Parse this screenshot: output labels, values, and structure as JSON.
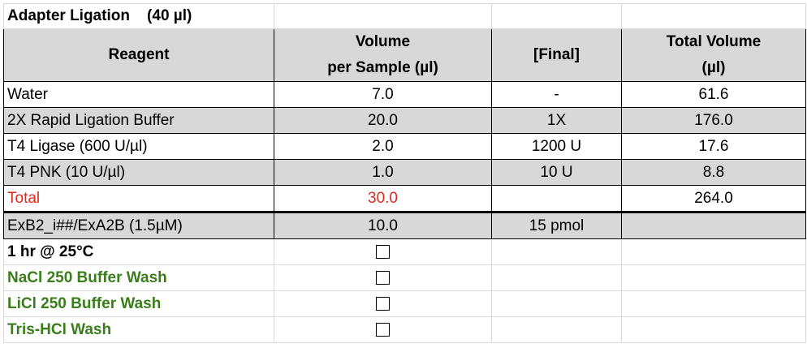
{
  "title": "Adapter Ligation    (40 µl)",
  "header": {
    "reagent": "Reagent",
    "volume_line1": "Volume",
    "volume_line2": "per Sample (µl)",
    "final": "[Final]",
    "total_line1": "Total Volume",
    "total_line2": "(µl)"
  },
  "rows": [
    {
      "reagent": "Water",
      "volume": "7.0",
      "final": "-",
      "total": "61.6"
    },
    {
      "reagent": "2X Rapid Ligation Buffer",
      "volume": "20.0",
      "final": "1X",
      "total": "176.0"
    },
    {
      "reagent": "T4 Ligase (600 U/µl)",
      "volume": "2.0",
      "final": "1200 U",
      "total": "17.6"
    },
    {
      "reagent": "T4 PNK (10 U/µl)",
      "volume": "1.0",
      "final": "10 U",
      "total": "8.8"
    }
  ],
  "total_row": {
    "reagent": "Total",
    "volume": "30.0",
    "final": "",
    "total": "264.0"
  },
  "adapter_row": {
    "reagent": "ExB2_i##/ExA2B (1.5µM)",
    "volume": "10.0",
    "final": "15 pmol",
    "total": ""
  },
  "steps": [
    {
      "label": "1 hr @ 25°C",
      "checked": false
    },
    {
      "label": "NaCl 250 Buffer Wash",
      "checked": false
    },
    {
      "label": "LiCl 250 Buffer Wash",
      "checked": false
    },
    {
      "label": "Tris-HCl Wash",
      "checked": false
    }
  ],
  "colors": {
    "header_fill": "#d8d8d8",
    "total_red": "#e0281f",
    "wash_green": "#3a7d1b"
  }
}
